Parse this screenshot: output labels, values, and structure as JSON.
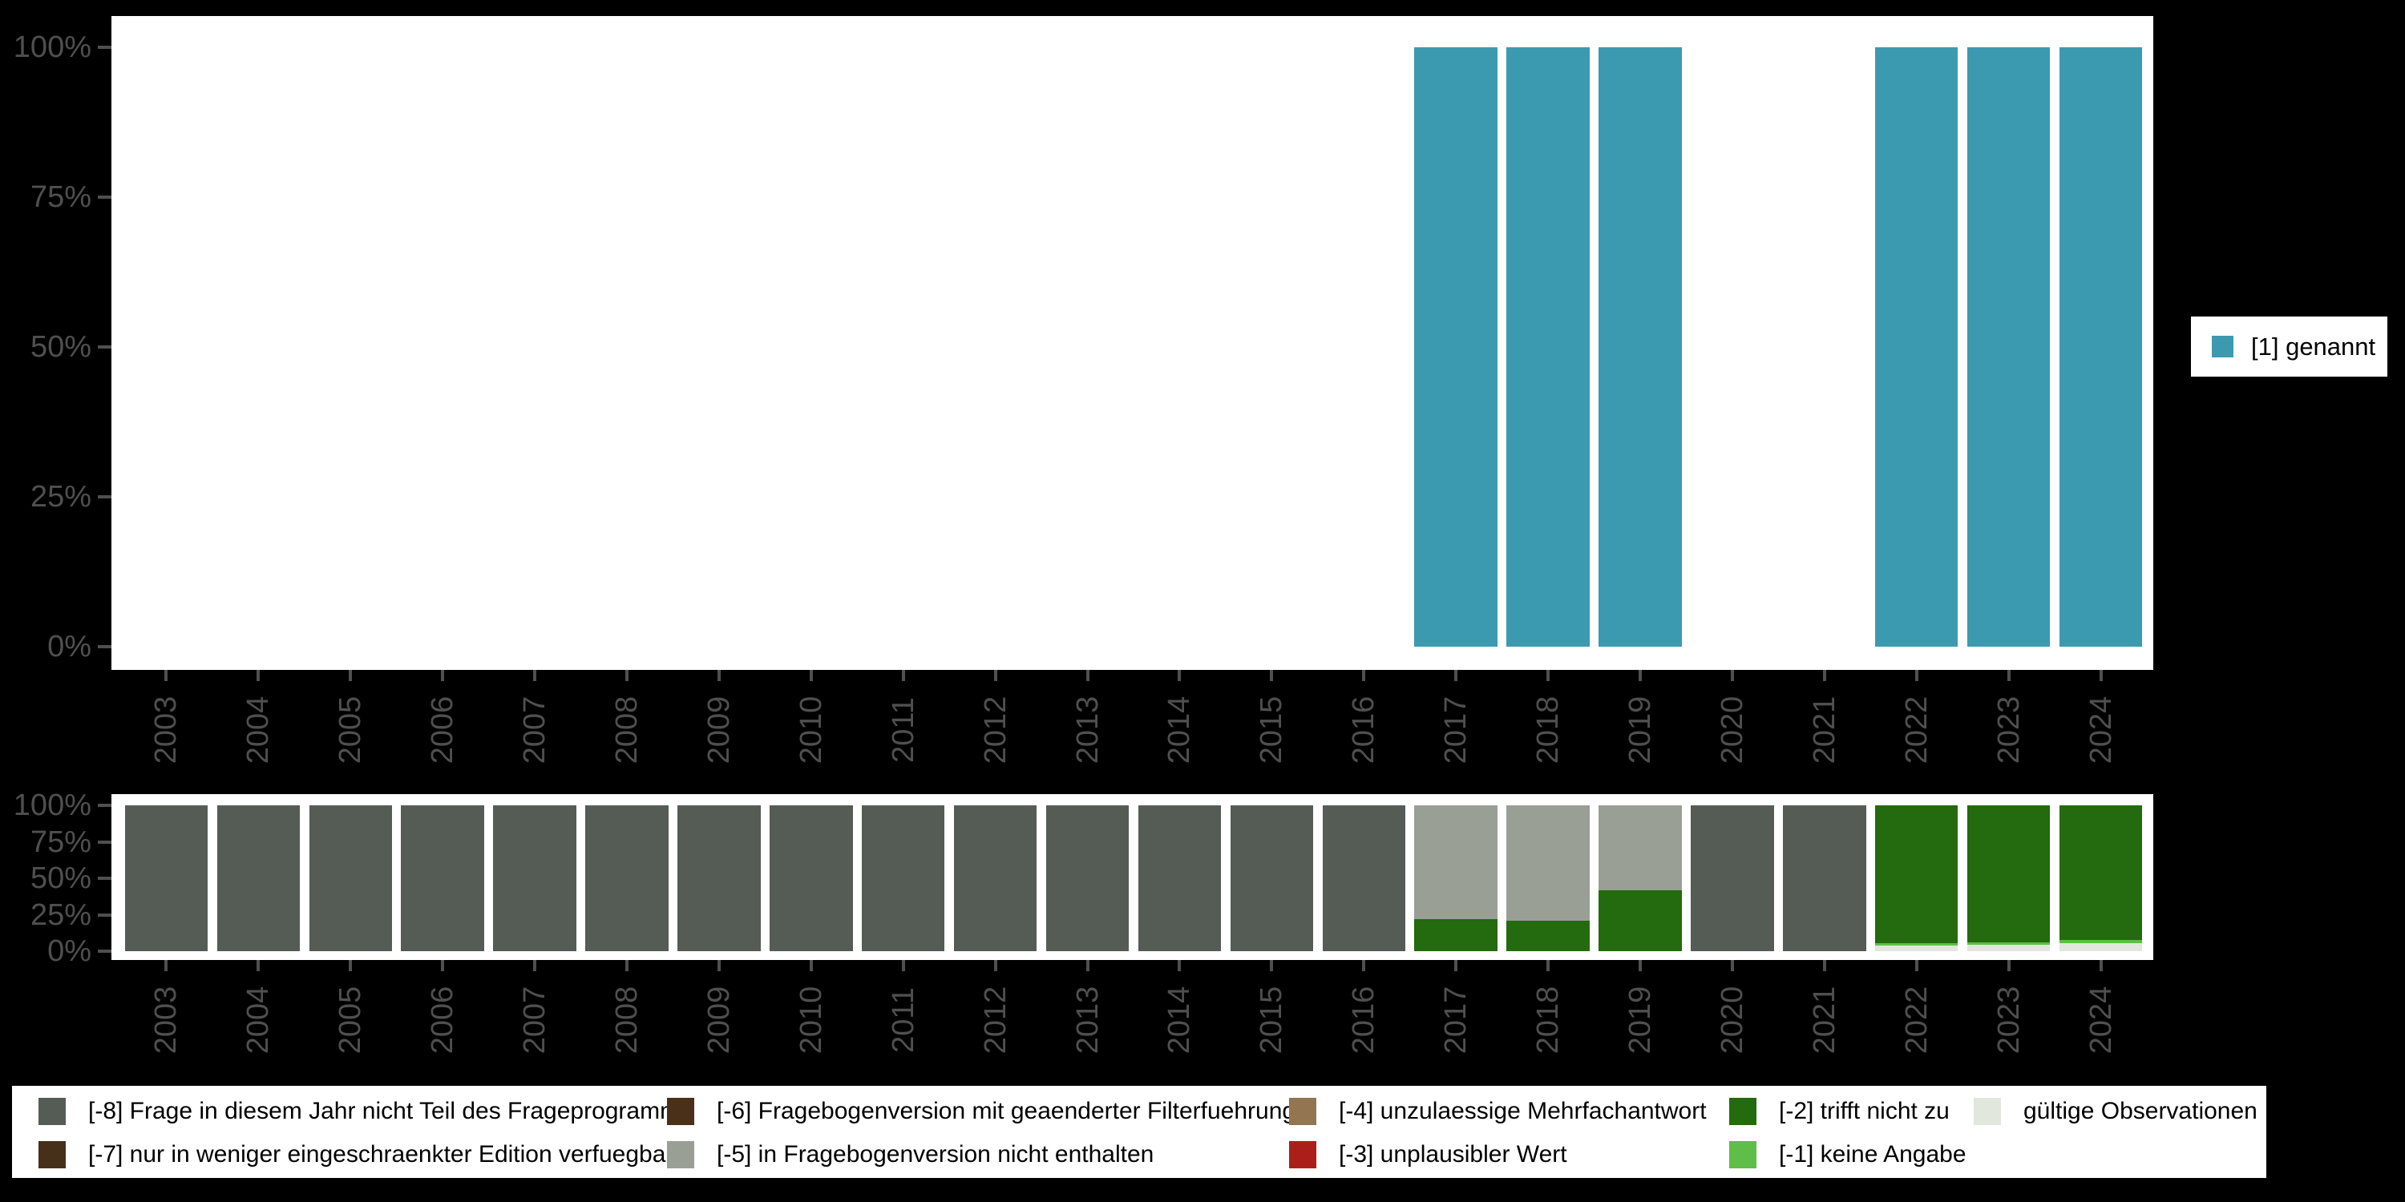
{
  "page": {
    "background": "#000000",
    "plot_background": "#ffffff",
    "axis_text_color": "#4f4f4f"
  },
  "top_legend": {
    "label": "[1] genannt",
    "swatch_color": "#3c9ab0"
  },
  "chart_data": [
    {
      "type": "bar",
      "stacked": true,
      "title": "",
      "xlabel": "",
      "ylabel": "",
      "ylim": [
        0,
        100
      ],
      "grid": false,
      "legend_position": "right",
      "categories": [
        "2003",
        "2004",
        "2005",
        "2006",
        "2007",
        "2008",
        "2009",
        "2010",
        "2011",
        "2012",
        "2013",
        "2014",
        "2015",
        "2016",
        "2017",
        "2018",
        "2019",
        "2020",
        "2021",
        "2022",
        "2023",
        "2024"
      ],
      "yticks": [
        {
          "label": "100%",
          "value": 100
        },
        {
          "label": "75%",
          "value": 75
        },
        {
          "label": "50%",
          "value": 50
        },
        {
          "label": "25%",
          "value": 25
        },
        {
          "label": "0%",
          "value": 0
        }
      ],
      "series": [
        {
          "name": "[1] genannt",
          "color": "#3c9ab0",
          "values": [
            0,
            0,
            0,
            0,
            0,
            0,
            0,
            0,
            0,
            0,
            0,
            0,
            0,
            0,
            100,
            100,
            100,
            0,
            0,
            100,
            100,
            100
          ]
        }
      ]
    },
    {
      "type": "bar",
      "stacked": true,
      "title": "",
      "xlabel": "",
      "ylabel": "",
      "ylim": [
        0,
        100
      ],
      "grid": false,
      "legend_position": "bottom",
      "categories": [
        "2003",
        "2004",
        "2005",
        "2006",
        "2007",
        "2008",
        "2009",
        "2010",
        "2011",
        "2012",
        "2013",
        "2014",
        "2015",
        "2016",
        "2017",
        "2018",
        "2019",
        "2020",
        "2021",
        "2022",
        "2023",
        "2024"
      ],
      "yticks": [
        {
          "label": "100%",
          "value": 100
        },
        {
          "label": "75%",
          "value": 75
        },
        {
          "label": "50%",
          "value": 50
        },
        {
          "label": "25%",
          "value": 25
        },
        {
          "label": "0%",
          "value": 0
        }
      ],
      "stack_order": "first series at bottom",
      "series": [
        {
          "name": "gültige Observationen",
          "color": "#e2e7de",
          "values": [
            0,
            0,
            0,
            0,
            0,
            0,
            0,
            0,
            0,
            0,
            0,
            0,
            0,
            0,
            0,
            0,
            0,
            0,
            0,
            4,
            4.5,
            5.5
          ]
        },
        {
          "name": "[-1] keine Angabe",
          "color": "#5fbe48",
          "values": [
            0,
            0,
            0,
            0,
            0,
            0,
            0,
            0,
            0,
            0,
            0,
            0,
            0,
            0,
            0,
            0,
            0,
            0,
            0,
            1.5,
            1.5,
            2
          ]
        },
        {
          "name": "[-2] trifft nicht zu",
          "color": "#246a0e",
          "values": [
            0,
            0,
            0,
            0,
            0,
            0,
            0,
            0,
            0,
            0,
            0,
            0,
            0,
            0,
            22,
            21,
            42,
            0,
            0,
            94.5,
            94,
            92.5
          ]
        },
        {
          "name": "[-3] unplausibler Wert",
          "color": "#ab1f1a",
          "values": [
            0,
            0,
            0,
            0,
            0,
            0,
            0,
            0,
            0,
            0,
            0,
            0,
            0,
            0,
            0,
            0,
            0,
            0,
            0,
            0,
            0,
            0
          ]
        },
        {
          "name": "[-4] unzulaessige Mehrfachantwort",
          "color": "#947552",
          "values": [
            0,
            0,
            0,
            0,
            0,
            0,
            0,
            0,
            0,
            0,
            0,
            0,
            0,
            0,
            0,
            0,
            0,
            0,
            0,
            0,
            0,
            0
          ]
        },
        {
          "name": "[-5] in Fragebogenversion nicht enthalten",
          "color": "#9a9f96",
          "values": [
            0,
            0,
            0,
            0,
            0,
            0,
            0,
            0,
            0,
            0,
            0,
            0,
            0,
            0,
            78,
            79,
            58,
            0,
            0,
            0,
            0,
            0
          ]
        },
        {
          "name": "[-6] Fragebogenversion mit geaenderter Filterfuehrung",
          "color": "#4a3019",
          "values": [
            0,
            0,
            0,
            0,
            0,
            0,
            0,
            0,
            0,
            0,
            0,
            0,
            0,
            0,
            0,
            0,
            0,
            0,
            0,
            0,
            0,
            0
          ]
        },
        {
          "name": "[-7] nur in weniger eingeschraenkter Edition verfuegbar",
          "color": "#47301a",
          "values": [
            0,
            0,
            0,
            0,
            0,
            0,
            0,
            0,
            0,
            0,
            0,
            0,
            0,
            0,
            0,
            0,
            0,
            0,
            0,
            0,
            0,
            0
          ]
        },
        {
          "name": "[-8] Frage in diesem Jahr nicht Teil des Frageprogramms",
          "color": "#545c55",
          "values": [
            100,
            100,
            100,
            100,
            100,
            100,
            100,
            100,
            100,
            100,
            100,
            100,
            100,
            100,
            0,
            0,
            0,
            100,
            100,
            0,
            0,
            0
          ]
        }
      ]
    }
  ],
  "bottom_legend": {
    "rows": [
      [
        {
          "label": "[-8] Frage in diesem Jahr nicht Teil des Frageprogramms",
          "color": "#545c55"
        },
        {
          "label": "[-6] Fragebogenversion mit geaenderter Filterfuehrung",
          "color": "#4a3019"
        },
        {
          "label": "[-4] unzulaessige Mehrfachantwort",
          "color": "#947552"
        },
        {
          "label": "[-2] trifft nicht zu",
          "color": "#246a0e"
        },
        {
          "label": "gültige Observationen",
          "color": "#e2e7de"
        }
      ],
      [
        {
          "label": "[-7] nur in weniger eingeschraenkter Edition verfuegbar",
          "color": "#47301a"
        },
        {
          "label": "[-5] in Fragebogenversion nicht enthalten",
          "color": "#9a9f96"
        },
        {
          "label": "[-3] unplausibler Wert",
          "color": "#ab1f1a"
        },
        {
          "label": "[-1] keine Angabe",
          "color": "#5fbe48"
        }
      ]
    ]
  }
}
